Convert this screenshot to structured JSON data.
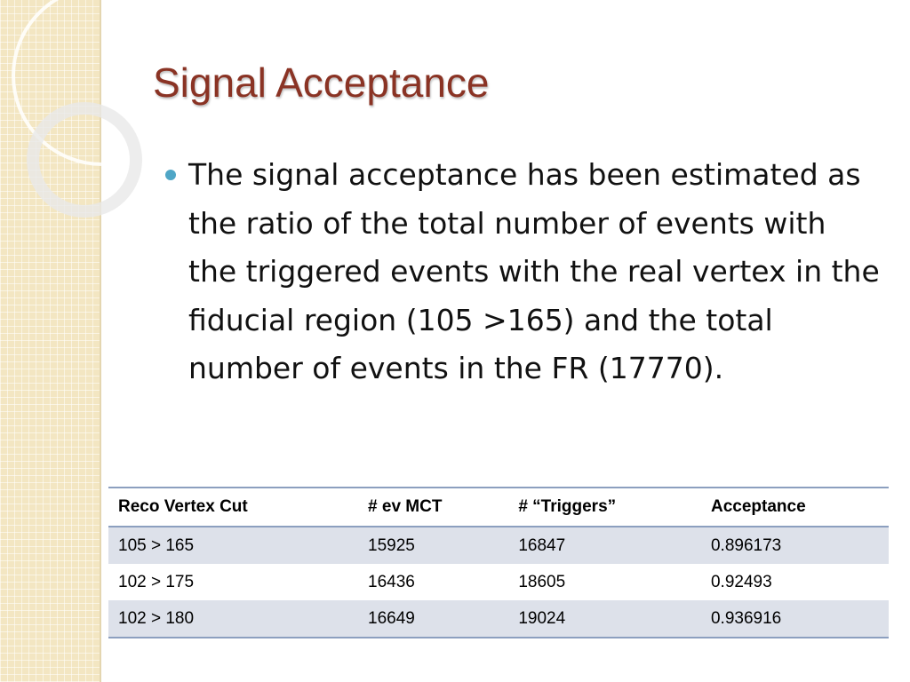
{
  "title": "Signal Acceptance",
  "bullets": [
    "The signal acceptance has been estimated as the ratio of the total number of events with the triggered events with the real vertex in the fiducial region (105 >165) and the total number of events in the FR (17770)."
  ],
  "table": {
    "header": [
      "Reco Vertex Cut",
      "# ev MCT",
      "# “Triggers”",
      "Acceptance"
    ],
    "rows": [
      [
        "105 > 165",
        "15925",
        "16847",
        "0.896173"
      ],
      [
        "102 > 175",
        "16436",
        "18605",
        "0.92493"
      ],
      [
        "102 > 180",
        "16649",
        "19024",
        "0.936916"
      ]
    ]
  }
}
